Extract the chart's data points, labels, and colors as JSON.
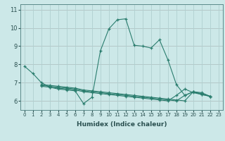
{
  "xlabel": "Humidex (Indice chaleur)",
  "bg_color": "#cce8e8",
  "grid_color": "#b0d0d0",
  "line_color": "#2a7d6e",
  "xlim": [
    -0.5,
    23.5
  ],
  "ylim": [
    5.5,
    11.3
  ],
  "yticks": [
    6,
    7,
    8,
    9,
    10,
    11
  ],
  "xticks": [
    0,
    1,
    2,
    3,
    4,
    5,
    6,
    7,
    8,
    9,
    10,
    11,
    12,
    13,
    14,
    15,
    16,
    17,
    18,
    19,
    20,
    21,
    22,
    23
  ],
  "series": [
    {
      "x": [
        0,
        1,
        2,
        3,
        4,
        5,
        6,
        7,
        8,
        9,
        10,
        11,
        12,
        13,
        14,
        15,
        16,
        17,
        18,
        19,
        20,
        21,
        22
      ],
      "y": [
        7.9,
        7.5,
        7.0,
        6.75,
        6.65,
        6.6,
        6.55,
        5.85,
        6.2,
        8.75,
        9.95,
        10.45,
        10.5,
        9.05,
        9.0,
        8.9,
        9.35,
        8.25,
        6.9,
        6.3,
        6.5,
        6.35,
        6.25
      ]
    },
    {
      "x": [
        2,
        3,
        4,
        5,
        6,
        7,
        8,
        9,
        10,
        11,
        12,
        13,
        14,
        15,
        16,
        17,
        18,
        19,
        20,
        21,
        22
      ],
      "y": [
        6.9,
        6.85,
        6.8,
        6.75,
        6.7,
        6.6,
        6.55,
        6.5,
        6.45,
        6.4,
        6.35,
        6.3,
        6.25,
        6.2,
        6.15,
        6.1,
        6.05,
        6.0,
        6.5,
        6.45,
        6.25
      ]
    },
    {
      "x": [
        2,
        3,
        4,
        5,
        6,
        7,
        8,
        9,
        10,
        11,
        12,
        13,
        14,
        15,
        16,
        17,
        18,
        19,
        20,
        21,
        22
      ],
      "y": [
        6.85,
        6.8,
        6.75,
        6.7,
        6.65,
        6.55,
        6.5,
        6.45,
        6.4,
        6.35,
        6.3,
        6.25,
        6.2,
        6.15,
        6.1,
        6.05,
        6.0,
        6.3,
        6.5,
        6.4,
        6.25
      ]
    },
    {
      "x": [
        2,
        3,
        4,
        5,
        6,
        7,
        8,
        9,
        10,
        11,
        12,
        13,
        14,
        15,
        16,
        17,
        18,
        19,
        20,
        21,
        22
      ],
      "y": [
        6.8,
        6.75,
        6.7,
        6.65,
        6.6,
        6.5,
        6.45,
        6.4,
        6.35,
        6.3,
        6.25,
        6.2,
        6.15,
        6.1,
        6.05,
        6.0,
        6.3,
        6.65,
        6.45,
        6.35,
        6.25
      ]
    }
  ],
  "xlabel_fontsize": 6.5,
  "xlabel_fontweight": "bold",
  "tick_fontsize": 5,
  "tick_color": "#2a5050",
  "spine_color": "#5a8a8a"
}
